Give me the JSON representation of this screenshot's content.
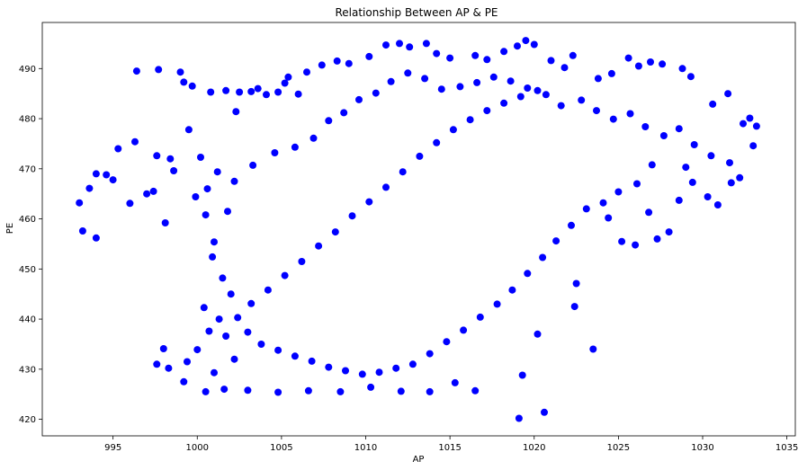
{
  "chart_data": {
    "type": "scatter",
    "title": "Relationship Between AP & PE",
    "xlabel": "AP",
    "ylabel": "PE",
    "xlim": [
      990.8,
      1035.5
    ],
    "ylim": [
      416.7,
      499.2
    ],
    "xticks": [
      995,
      1000,
      1005,
      1010,
      1015,
      1020,
      1025,
      1030,
      1035
    ],
    "yticks": [
      420,
      430,
      440,
      450,
      460,
      470,
      480,
      490
    ],
    "grid": false,
    "color": "#0000ff",
    "series": [
      {
        "points": [
          [
            993.0,
            463.2
          ],
          [
            993.2,
            457.6
          ],
          [
            993.6,
            466.1
          ],
          [
            994.0,
            469.0
          ],
          [
            994.0,
            456.2
          ],
          [
            994.6,
            468.8
          ],
          [
            995.0,
            467.8
          ],
          [
            995.3,
            474.0
          ],
          [
            996.0,
            463.1
          ],
          [
            996.3,
            475.4
          ],
          [
            996.4,
            489.5
          ],
          [
            997.0,
            465.0
          ],
          [
            997.4,
            465.5
          ],
          [
            997.6,
            472.6
          ],
          [
            997.7,
            489.8
          ],
          [
            998.1,
            459.2
          ],
          [
            998.4,
            472.0
          ],
          [
            998.6,
            469.6
          ],
          [
            999.0,
            489.3
          ],
          [
            999.2,
            487.3
          ],
          [
            999.5,
            477.8
          ],
          [
            999.7,
            486.5
          ],
          [
            999.9,
            464.4
          ],
          [
            1000.2,
            472.3
          ],
          [
            1000.8,
            485.3
          ],
          [
            1001.2,
            469.4
          ],
          [
            1001.7,
            485.6
          ],
          [
            1002.3,
            481.4
          ],
          [
            1002.5,
            485.3
          ],
          [
            1003.2,
            485.4
          ],
          [
            1003.6,
            486.0
          ],
          [
            1004.1,
            484.8
          ],
          [
            1004.8,
            485.3
          ],
          [
            1005.2,
            487.1
          ],
          [
            1005.4,
            488.3
          ],
          [
            1006.0,
            484.9
          ],
          [
            1006.5,
            489.3
          ],
          [
            1007.4,
            490.7
          ],
          [
            1008.3,
            491.5
          ],
          [
            1009.0,
            491.0
          ],
          [
            1010.2,
            492.4
          ],
          [
            1011.2,
            494.7
          ],
          [
            1012.0,
            495.0
          ],
          [
            1012.6,
            494.3
          ],
          [
            1013.6,
            495.0
          ],
          [
            1014.2,
            493.0
          ],
          [
            1015.0,
            492.1
          ],
          [
            1016.5,
            492.6
          ],
          [
            1017.2,
            491.8
          ],
          [
            1018.2,
            493.4
          ],
          [
            1019.0,
            494.5
          ],
          [
            1019.5,
            495.6
          ],
          [
            1020.0,
            494.8
          ],
          [
            1021.0,
            491.6
          ],
          [
            1021.8,
            490.2
          ],
          [
            1022.3,
            492.6
          ],
          [
            1023.8,
            488.0
          ],
          [
            1024.6,
            489.0
          ],
          [
            1025.6,
            492.1
          ],
          [
            1026.2,
            490.5
          ],
          [
            1026.9,
            491.3
          ],
          [
            1027.6,
            490.9
          ],
          [
            1028.8,
            490.0
          ],
          [
            1029.3,
            488.4
          ],
          [
            1030.6,
            482.9
          ],
          [
            1031.5,
            485.0
          ],
          [
            1032.4,
            479.0
          ],
          [
            1032.8,
            480.1
          ],
          [
            1033.2,
            478.5
          ],
          [
            1033.0,
            474.6
          ],
          [
            1032.2,
            468.2
          ],
          [
            1031.7,
            467.2
          ],
          [
            1030.9,
            462.8
          ],
          [
            1030.3,
            464.4
          ],
          [
            1029.4,
            467.3
          ],
          [
            1028.6,
            463.7
          ],
          [
            1028.0,
            457.4
          ],
          [
            1027.3,
            456.0
          ],
          [
            1026.8,
            461.3
          ],
          [
            1026.0,
            454.8
          ],
          [
            1025.2,
            455.5
          ],
          [
            1024.4,
            460.2
          ],
          [
            1023.5,
            434.0
          ],
          [
            1022.4,
            442.5
          ],
          [
            1022.5,
            447.1
          ],
          [
            1020.6,
            421.4
          ],
          [
            1019.1,
            420.2
          ],
          [
            1019.3,
            428.8
          ],
          [
            1020.2,
            437.0
          ],
          [
            1016.5,
            425.7
          ],
          [
            1015.3,
            427.3
          ],
          [
            1013.8,
            425.5
          ],
          [
            1012.1,
            425.6
          ],
          [
            1010.3,
            426.4
          ],
          [
            1008.5,
            425.5
          ],
          [
            1006.6,
            425.7
          ],
          [
            1004.8,
            425.4
          ],
          [
            1003.0,
            425.8
          ],
          [
            1001.6,
            426.0
          ],
          [
            1000.5,
            425.5
          ],
          [
            999.2,
            427.5
          ],
          [
            998.3,
            430.2
          ],
          [
            997.6,
            431.0
          ],
          [
            998.0,
            434.1
          ],
          [
            999.4,
            431.5
          ],
          [
            1000.0,
            433.9
          ],
          [
            1001.0,
            429.3
          ],
          [
            1002.2,
            432.0
          ],
          [
            1001.7,
            436.6
          ],
          [
            1000.7,
            437.6
          ],
          [
            1001.3,
            440.0
          ],
          [
            1000.4,
            442.3
          ],
          [
            1002.0,
            445.0
          ],
          [
            1001.5,
            448.2
          ],
          [
            1000.9,
            452.4
          ],
          [
            1001.0,
            455.4
          ],
          [
            1001.8,
            461.5
          ],
          [
            1000.5,
            460.8
          ],
          [
            1000.6,
            466.0
          ],
          [
            1002.2,
            467.5
          ],
          [
            1003.3,
            470.7
          ],
          [
            1004.6,
            473.2
          ],
          [
            1005.8,
            474.3
          ],
          [
            1006.9,
            476.1
          ],
          [
            1007.8,
            479.6
          ],
          [
            1008.7,
            481.2
          ],
          [
            1009.6,
            483.8
          ],
          [
            1010.6,
            485.1
          ],
          [
            1011.5,
            487.4
          ],
          [
            1012.5,
            489.1
          ],
          [
            1013.5,
            488.0
          ],
          [
            1014.5,
            485.9
          ],
          [
            1015.6,
            486.4
          ],
          [
            1016.6,
            487.2
          ],
          [
            1017.6,
            488.3
          ],
          [
            1018.6,
            487.5
          ],
          [
            1019.6,
            486.1
          ],
          [
            1020.7,
            484.8
          ],
          [
            1021.6,
            482.6
          ],
          [
            1022.8,
            483.7
          ],
          [
            1023.7,
            481.6
          ],
          [
            1024.7,
            479.9
          ],
          [
            1025.7,
            481.0
          ],
          [
            1026.6,
            478.4
          ],
          [
            1027.7,
            476.6
          ],
          [
            1028.6,
            478.0
          ],
          [
            1029.5,
            474.8
          ],
          [
            1030.5,
            472.6
          ],
          [
            1031.6,
            471.2
          ],
          [
            1029.0,
            470.3
          ],
          [
            1027.0,
            470.8
          ],
          [
            1026.1,
            467.0
          ],
          [
            1025.0,
            465.4
          ],
          [
            1024.1,
            463.2
          ],
          [
            1023.1,
            462.0
          ],
          [
            1022.2,
            458.7
          ],
          [
            1021.3,
            455.6
          ],
          [
            1020.5,
            452.3
          ],
          [
            1019.6,
            449.1
          ],
          [
            1018.7,
            445.8
          ],
          [
            1017.8,
            443.0
          ],
          [
            1016.8,
            440.4
          ],
          [
            1015.8,
            437.8
          ],
          [
            1014.8,
            435.5
          ],
          [
            1013.8,
            433.1
          ],
          [
            1012.8,
            431.0
          ],
          [
            1011.8,
            430.2
          ],
          [
            1010.8,
            429.4
          ],
          [
            1009.8,
            429.0
          ],
          [
            1008.8,
            429.7
          ],
          [
            1007.8,
            430.4
          ],
          [
            1006.8,
            431.6
          ],
          [
            1005.8,
            432.6
          ],
          [
            1004.8,
            433.8
          ],
          [
            1003.8,
            435.0
          ],
          [
            1003.0,
            437.4
          ],
          [
            1002.4,
            440.3
          ],
          [
            1003.2,
            443.1
          ],
          [
            1004.2,
            445.8
          ],
          [
            1005.2,
            448.7
          ],
          [
            1006.2,
            451.5
          ],
          [
            1007.2,
            454.6
          ],
          [
            1008.2,
            457.4
          ],
          [
            1009.2,
            460.6
          ],
          [
            1010.2,
            463.4
          ],
          [
            1011.2,
            466.3
          ],
          [
            1012.2,
            469.4
          ],
          [
            1013.2,
            472.5
          ],
          [
            1014.2,
            475.2
          ],
          [
            1015.2,
            477.8
          ],
          [
            1016.2,
            479.8
          ],
          [
            1017.2,
            481.6
          ],
          [
            1018.2,
            483.1
          ],
          [
            1019.2,
            484.4
          ],
          [
            1020.2,
            485.6
          ]
        ]
      }
    ]
  }
}
